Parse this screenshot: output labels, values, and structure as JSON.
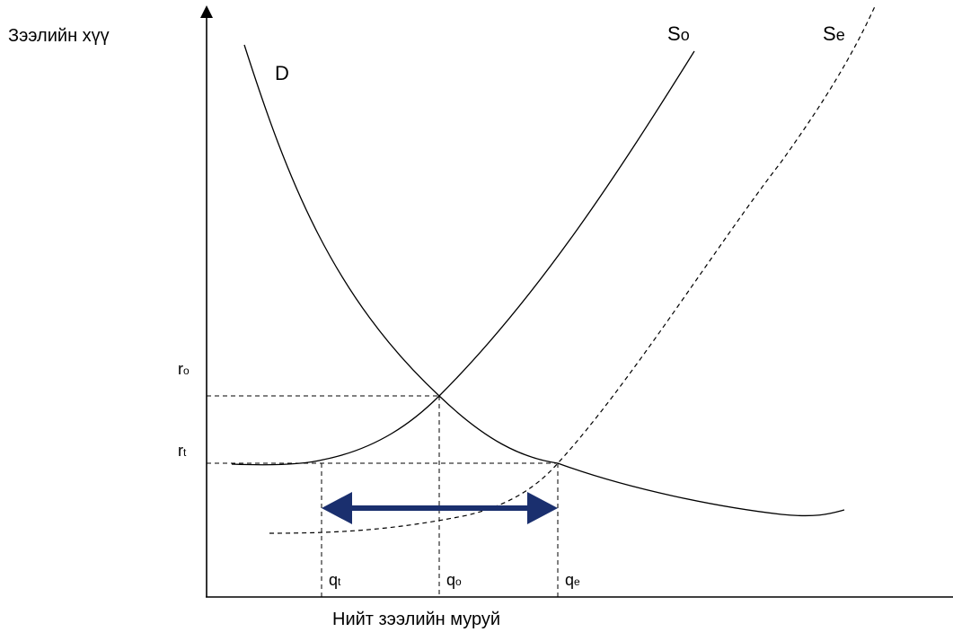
{
  "diagram": {
    "y_axis_title": "Зээлийн хүү",
    "x_axis_title": "Нийт зээлийн муруй",
    "curves": {
      "demand": {
        "main": "D",
        "sub": ""
      },
      "supply_original": {
        "main": "S",
        "sub": "o"
      },
      "supply_expanded": {
        "main": "S",
        "sub": "e"
      }
    },
    "y_ticks": {
      "r_o": {
        "main": "r",
        "sub": "o"
      },
      "r_t": {
        "main": "r",
        "sub": "t"
      }
    },
    "x_ticks": {
      "q_t": {
        "main": "q",
        "sub": "t"
      },
      "q_o": {
        "main": "q",
        "sub": "o"
      },
      "q_e": {
        "main": "q",
        "sub": "e"
      }
    },
    "colors": {
      "lines": "#000000",
      "arrow": "#1a2f6e"
    }
  }
}
